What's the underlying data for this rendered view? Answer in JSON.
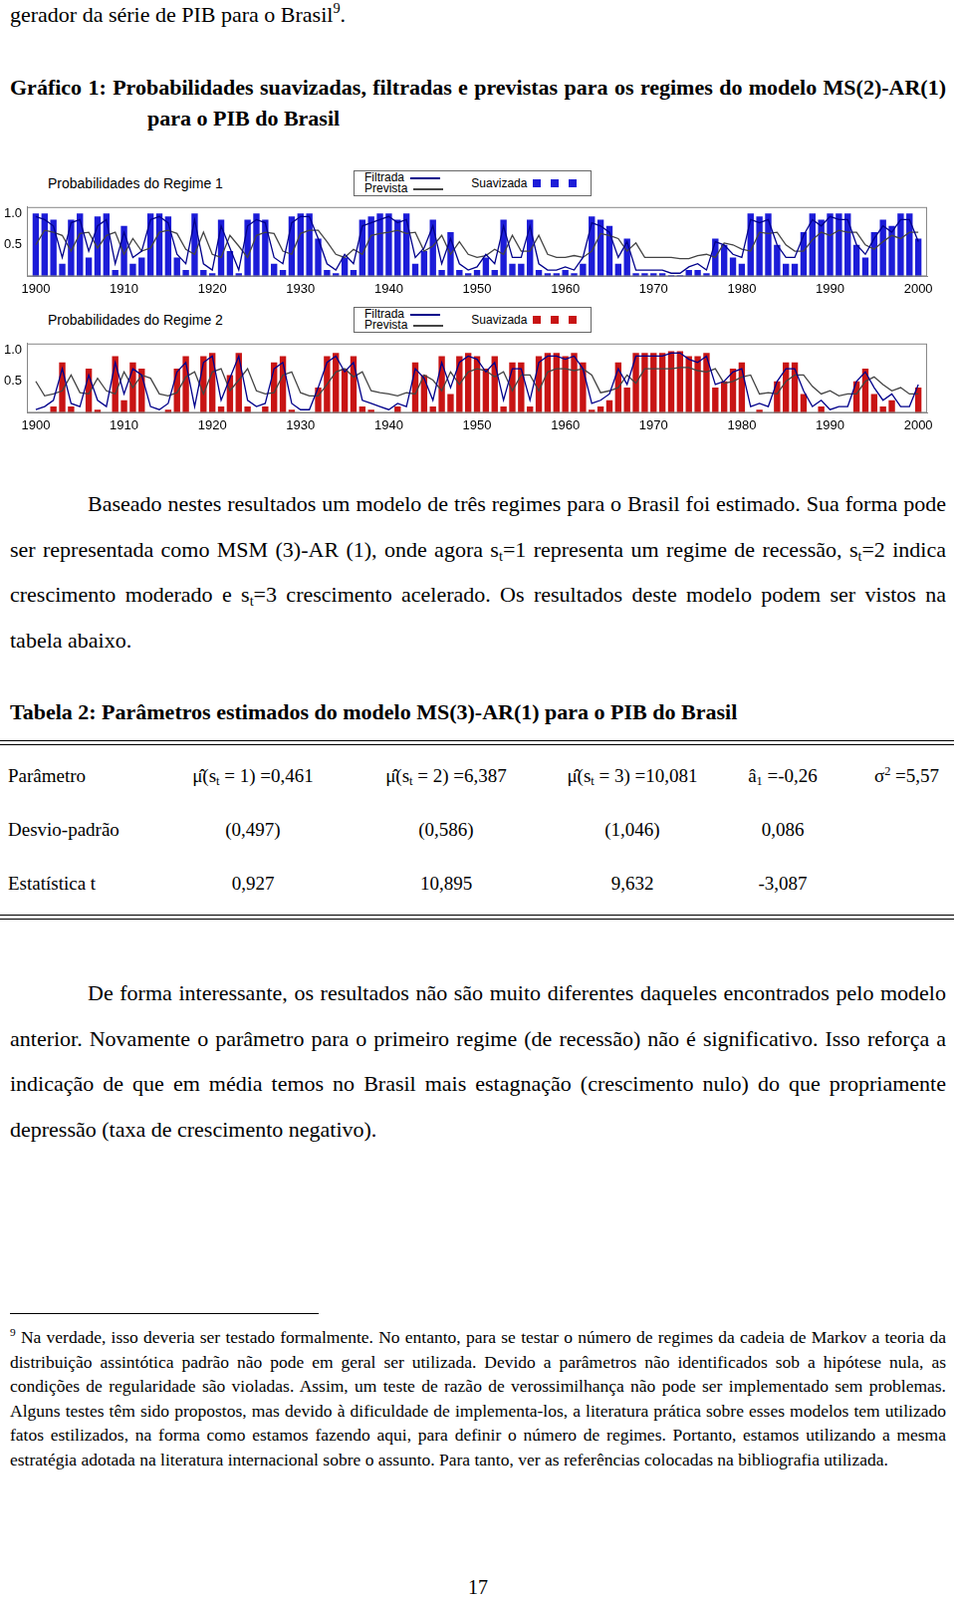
{
  "header": [
    "gerador da série de PIB para o Brasil",
    {
      "sup": "9"
    },
    "."
  ],
  "figure_title": "Gráfico 1: Probabilidades suavizadas, filtradas e previstas para os regimes do modelo MS(2)-AR(1) para o PIB do Brasil",
  "chart_data": [
    {
      "type": "bar",
      "title": "Probabilidades do Regime 1",
      "x": [
        1900,
        1901,
        1902,
        1903,
        1904,
        1905,
        1906,
        1907,
        1908,
        1909,
        1910,
        1911,
        1912,
        1913,
        1914,
        1915,
        1916,
        1917,
        1918,
        1919,
        1920,
        1921,
        1922,
        1923,
        1924,
        1925,
        1926,
        1927,
        1928,
        1929,
        1930,
        1931,
        1932,
        1933,
        1934,
        1935,
        1936,
        1937,
        1938,
        1939,
        1940,
        1941,
        1942,
        1943,
        1944,
        1945,
        1946,
        1947,
        1948,
        1949,
        1950,
        1951,
        1952,
        1953,
        1954,
        1955,
        1956,
        1957,
        1958,
        1959,
        1960,
        1961,
        1962,
        1963,
        1964,
        1965,
        1966,
        1967,
        1968,
        1969,
        1970,
        1971,
        1972,
        1973,
        1974,
        1975,
        1976,
        1977,
        1978,
        1979,
        1980,
        1981,
        1982,
        1983,
        1984,
        1985,
        1986,
        1987,
        1988,
        1989,
        1990,
        1991,
        1992,
        1993,
        1994,
        1995,
        1996,
        1997,
        1998,
        1999,
        2000
      ],
      "series": [
        {
          "name": "Filtrada",
          "type": "line",
          "color": "#00008b",
          "values": [
            0.95,
            0.9,
            0.8,
            0.3,
            0.85,
            0.9,
            0.4,
            0.8,
            0.9,
            0.2,
            0.7,
            0.3,
            0.4,
            0.9,
            0.95,
            0.85,
            0.35,
            0.2,
            0.9,
            0.2,
            0.1,
            0.8,
            0.45,
            0.1,
            0.8,
            0.9,
            0.85,
            0.3,
            0.2,
            0.85,
            0.95,
            0.95,
            0.6,
            0.2,
            0.1,
            0.35,
            0.2,
            0.8,
            0.85,
            0.9,
            0.95,
            0.85,
            0.9,
            0.3,
            0.45,
            0.8,
            0.2,
            0.6,
            0.2,
            0.1,
            0.15,
            0.35,
            0.2,
            0.8,
            0.3,
            0.3,
            0.8,
            0.2,
            0.1,
            0.1,
            0.15,
            0.1,
            0.3,
            0.85,
            0.8,
            0.7,
            0.3,
            0.55,
            0.1,
            0.1,
            0.1,
            0.1,
            0.05,
            0.05,
            0.15,
            0.2,
            0.1,
            0.55,
            0.5,
            0.35,
            0.3,
            0.9,
            0.85,
            0.9,
            0.5,
            0.3,
            0.3,
            0.65,
            0.9,
            0.8,
            0.95,
            0.9,
            0.9,
            0.5,
            0.35,
            0.6,
            0.8,
            0.7,
            0.9,
            0.9,
            0.55
          ]
        },
        {
          "name": "Prevista",
          "type": "line",
          "color": "#444444",
          "values": [
            0.5,
            0.73,
            0.7,
            0.65,
            0.4,
            0.68,
            0.7,
            0.45,
            0.65,
            0.7,
            0.35,
            0.6,
            0.4,
            0.45,
            0.7,
            0.73,
            0.68,
            0.43,
            0.35,
            0.7,
            0.35,
            0.3,
            0.65,
            0.48,
            0.3,
            0.65,
            0.7,
            0.68,
            0.4,
            0.35,
            0.68,
            0.73,
            0.73,
            0.55,
            0.35,
            0.3,
            0.43,
            0.35,
            0.65,
            0.68,
            0.7,
            0.73,
            0.68,
            0.7,
            0.4,
            0.48,
            0.65,
            0.35,
            0.55,
            0.35,
            0.3,
            0.33,
            0.43,
            0.35,
            0.65,
            0.4,
            0.4,
            0.65,
            0.35,
            0.3,
            0.3,
            0.33,
            0.3,
            0.4,
            0.68,
            0.65,
            0.6,
            0.4,
            0.53,
            0.3,
            0.3,
            0.3,
            0.3,
            0.28,
            0.28,
            0.33,
            0.35,
            0.3,
            0.53,
            0.5,
            0.43,
            0.4,
            0.7,
            0.68,
            0.7,
            0.5,
            0.4,
            0.4,
            0.58,
            0.7,
            0.65,
            0.73,
            0.7,
            0.7,
            0.5,
            0.43,
            0.55,
            0.65,
            0.6,
            0.7,
            0.7
          ]
        },
        {
          "name": "Suavizada",
          "type": "bar",
          "color": "#1c1cd8",
          "values": [
            1.0,
            1.0,
            0.9,
            0.2,
            0.9,
            1.0,
            0.3,
            0.95,
            1.0,
            0.1,
            0.8,
            0.2,
            0.3,
            1.0,
            1.0,
            0.95,
            0.3,
            0.1,
            1.0,
            0.1,
            0.05,
            0.9,
            0.4,
            0.05,
            0.9,
            1.0,
            0.9,
            0.2,
            0.1,
            0.95,
            1.0,
            1.0,
            0.6,
            0.1,
            0.05,
            0.3,
            0.1,
            0.9,
            0.95,
            1.0,
            1.0,
            0.9,
            1.0,
            0.2,
            0.4,
            0.9,
            0.1,
            0.7,
            0.1,
            0.05,
            0.1,
            0.3,
            0.1,
            0.9,
            0.2,
            0.2,
            0.9,
            0.1,
            0.05,
            0.05,
            0.1,
            0.05,
            0.2,
            0.95,
            0.9,
            0.8,
            0.2,
            0.6,
            0.05,
            0.05,
            0.05,
            0.05,
            0.02,
            0.02,
            0.1,
            0.1,
            0.05,
            0.6,
            0.5,
            0.3,
            0.2,
            1.0,
            0.95,
            1.0,
            0.5,
            0.2,
            0.2,
            0.7,
            1.0,
            0.9,
            1.0,
            1.0,
            1.0,
            0.5,
            0.3,
            0.7,
            0.9,
            0.8,
            1.0,
            1.0,
            0.6
          ]
        }
      ],
      "xlim": [
        1899,
        2001
      ],
      "xticks": [
        1900,
        1910,
        1920,
        1930,
        1940,
        1950,
        1960,
        1970,
        1980,
        1990,
        2000
      ],
      "ylim": [
        0,
        1.1
      ],
      "yticks": [
        0.5,
        {
          "value": 1,
          "label": "1.0"
        }
      ],
      "grid": false
    },
    {
      "type": "bar",
      "title": "Probabilidades do Regime 2",
      "x": [
        1900,
        1901,
        1902,
        1903,
        1904,
        1905,
        1906,
        1907,
        1908,
        1909,
        1910,
        1911,
        1912,
        1913,
        1914,
        1915,
        1916,
        1917,
        1918,
        1919,
        1920,
        1921,
        1922,
        1923,
        1924,
        1925,
        1926,
        1927,
        1928,
        1929,
        1930,
        1931,
        1932,
        1933,
        1934,
        1935,
        1936,
        1937,
        1938,
        1939,
        1940,
        1941,
        1942,
        1943,
        1944,
        1945,
        1946,
        1947,
        1948,
        1949,
        1950,
        1951,
        1952,
        1953,
        1954,
        1955,
        1956,
        1957,
        1958,
        1959,
        1960,
        1961,
        1962,
        1963,
        1964,
        1965,
        1966,
        1967,
        1968,
        1969,
        1970,
        1971,
        1972,
        1973,
        1974,
        1975,
        1976,
        1977,
        1978,
        1979,
        1980,
        1981,
        1982,
        1983,
        1984,
        1985,
        1986,
        1987,
        1988,
        1989,
        1990,
        1991,
        1992,
        1993,
        1994,
        1995,
        1996,
        1997,
        1998,
        1999,
        2000
      ],
      "series": [
        {
          "name": "Filtrada",
          "type": "line",
          "color": "#00008b",
          "values": [
            0.05,
            0.1,
            0.2,
            0.7,
            0.15,
            0.1,
            0.6,
            0.2,
            0.1,
            0.8,
            0.3,
            0.7,
            0.6,
            0.1,
            0.05,
            0.15,
            0.65,
            0.8,
            0.1,
            0.8,
            0.9,
            0.2,
            0.55,
            0.9,
            0.2,
            0.1,
            0.15,
            0.7,
            0.8,
            0.15,
            0.05,
            0.05,
            0.4,
            0.8,
            0.9,
            0.65,
            0.8,
            0.2,
            0.15,
            0.1,
            0.05,
            0.15,
            0.1,
            0.7,
            0.55,
            0.2,
            0.8,
            0.4,
            0.8,
            0.9,
            0.85,
            0.65,
            0.8,
            0.2,
            0.7,
            0.7,
            0.2,
            0.8,
            0.9,
            0.9,
            0.85,
            0.9,
            0.7,
            0.15,
            0.2,
            0.3,
            0.7,
            0.45,
            0.9,
            0.9,
            0.9,
            0.9,
            0.95,
            0.95,
            0.85,
            0.8,
            0.9,
            0.45,
            0.5,
            0.65,
            0.7,
            0.1,
            0.15,
            0.1,
            0.5,
            0.7,
            0.7,
            0.35,
            0.1,
            0.2,
            0.05,
            0.1,
            0.1,
            0.5,
            0.65,
            0.4,
            0.2,
            0.3,
            0.1,
            0.1,
            0.45
          ]
        },
        {
          "name": "Prevista",
          "type": "line",
          "color": "#444444",
          "values": [
            0.5,
            0.27,
            0.3,
            0.35,
            0.6,
            0.32,
            0.3,
            0.55,
            0.35,
            0.3,
            0.65,
            0.4,
            0.6,
            0.55,
            0.3,
            0.27,
            0.32,
            0.57,
            0.65,
            0.3,
            0.65,
            0.7,
            0.35,
            0.52,
            0.7,
            0.35,
            0.3,
            0.32,
            0.6,
            0.65,
            0.32,
            0.27,
            0.27,
            0.45,
            0.65,
            0.7,
            0.57,
            0.65,
            0.35,
            0.32,
            0.3,
            0.27,
            0.32,
            0.3,
            0.6,
            0.52,
            0.35,
            0.65,
            0.45,
            0.65,
            0.7,
            0.67,
            0.57,
            0.65,
            0.35,
            0.6,
            0.6,
            0.35,
            0.65,
            0.7,
            0.7,
            0.67,
            0.7,
            0.6,
            0.32,
            0.35,
            0.4,
            0.6,
            0.47,
            0.7,
            0.7,
            0.7,
            0.7,
            0.72,
            0.72,
            0.67,
            0.65,
            0.7,
            0.47,
            0.5,
            0.57,
            0.6,
            0.3,
            0.32,
            0.3,
            0.5,
            0.6,
            0.6,
            0.42,
            0.3,
            0.35,
            0.27,
            0.3,
            0.3,
            0.5,
            0.57,
            0.45,
            0.35,
            0.4,
            0.3,
            0.3
          ]
        },
        {
          "name": "Suavizada",
          "type": "bar",
          "color": "#c81414",
          "values": [
            0,
            0,
            0.1,
            0.8,
            0.1,
            0,
            0.7,
            0.05,
            0,
            0.9,
            0.2,
            0.8,
            0.7,
            0,
            0,
            0.05,
            0.7,
            0.9,
            0,
            0.9,
            0.95,
            0.1,
            0.6,
            0.95,
            0.1,
            0,
            0.1,
            0.8,
            0.9,
            0.05,
            0,
            0,
            0.4,
            0.9,
            0.95,
            0.7,
            0.9,
            0.1,
            0.05,
            0,
            0,
            0.1,
            0,
            0.8,
            0.6,
            0.1,
            0.9,
            0.3,
            0.9,
            0.95,
            0.9,
            0.7,
            0.9,
            0.1,
            0.8,
            0.8,
            0.1,
            0.9,
            0.95,
            0.95,
            0.9,
            0.95,
            0.8,
            0.05,
            0.1,
            0.2,
            0.8,
            0.4,
            0.95,
            0.95,
            0.95,
            0.95,
            0.98,
            0.98,
            0.9,
            0.9,
            0.95,
            0.4,
            0.5,
            0.7,
            0.8,
            0,
            0.05,
            0,
            0.5,
            0.8,
            0.8,
            0.3,
            0,
            0.1,
            0,
            0,
            0,
            0.5,
            0.7,
            0.3,
            0.1,
            0.2,
            0,
            0,
            0.4
          ]
        }
      ],
      "xlim": [
        1899,
        2001
      ],
      "xticks": [
        1900,
        1910,
        1920,
        1930,
        1940,
        1950,
        1960,
        1970,
        1980,
        1990,
        2000
      ],
      "ylim": [
        0,
        1.1
      ],
      "yticks": [
        0.5,
        {
          "value": 1,
          "label": "1.0"
        }
      ],
      "grid": false
    }
  ],
  "paragraph_1": [
    "Baseado nestes resultados um modelo de três regimes para o Brasil foi estimado. Sua forma pode ser representada como MSM (3)-AR (1), onde agora s",
    {
      "sub": "t"
    },
    "=1 representa um regime de recessão, s",
    {
      "sub": "t"
    },
    "=2 indica crescimento moderado e s",
    {
      "sub": "t"
    },
    "=3 crescimento acelerado. Os resultados deste modelo podem ser vistos na tabela abaixo."
  ],
  "table": {
    "title": "Tabela 2: Parâmetros estimados do modelo MS(3)-AR(1) para o PIB do Brasil",
    "rows": [
      [
        [
          "Parâmetro"
        ],
        [
          "μ̂(s",
          {
            "sub": "t"
          },
          " = 1) =0,461"
        ],
        [
          "μ̂(s",
          {
            "sub": "t"
          },
          " = 2) =6,387"
        ],
        [
          "μ̂(s",
          {
            "sub": "t"
          },
          " = 3) =10,081"
        ],
        [
          "â",
          {
            "sub": "1"
          },
          " =-0,26"
        ],
        [
          "σ",
          {
            "sup": "2"
          },
          " =5,57"
        ]
      ],
      [
        [
          "Desvio-padrão"
        ],
        [
          "(0,497)"
        ],
        [
          "(0,586)"
        ],
        [
          "(1,046)"
        ],
        [
          "0,086"
        ]
      ],
      [
        [
          "Estatística t"
        ],
        [
          "0,927"
        ],
        [
          "10,895"
        ],
        [
          "9,632"
        ],
        [
          "-3,087"
        ]
      ]
    ]
  },
  "paragraph_2": "De forma interessante, os resultados não são muito diferentes daqueles encontrados pelo modelo anterior. Novamente o parâmetro para o primeiro regime (de recessão) não é significativo. Isso reforça a indicação de que em média temos no Brasil mais estagnação (crescimento nulo) do que propriamente depressão (taxa de crescimento negativo).",
  "footnote": {
    "mark": "9",
    "text": " Na verdade, isso deveria ser testado formalmente. No entanto, para se testar o número de regimes da cadeia de Markov a teoria da distribuição assintótica padrão não pode em geral ser utilizada. Devido a parâmetros não identificados sob a hipótese nula, as condições de regularidade são violadas. Assim, um teste de razão de verossimilhança não pode ser implementado sem problemas. Alguns testes têm sido propostos, mas devido à dificuldade de implementa-los, a literatura prática sobre esses modelos tem utilizado fatos estilizados, na forma como estamos fazendo aqui, para definir o número de regimes. Portanto, estamos utilizando a mesma estratégia adotada na literatura internacional sobre o assunto. Para tanto, ver as referências colocadas na bibliografia utilizada."
  },
  "page_number": "17"
}
